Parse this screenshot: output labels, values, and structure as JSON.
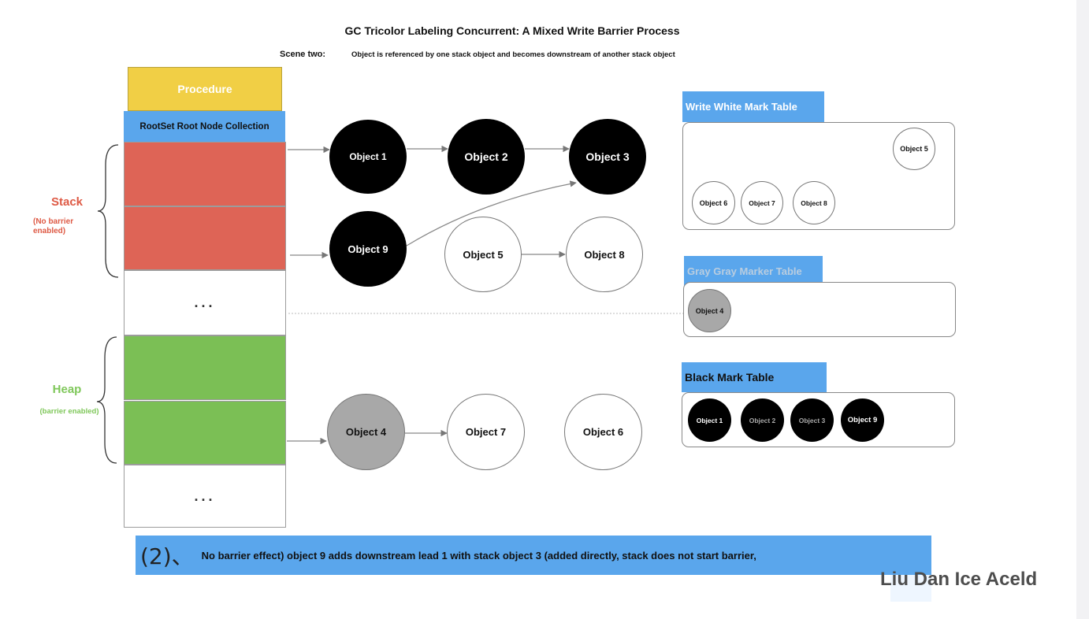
{
  "title": "GC Tricolor Labeling Concurrent: A Mixed Write Barrier Process",
  "scene": {
    "label": "Scene two:",
    "text": "Object is referenced by one stack object and becomes downstream of another stack object"
  },
  "procedure_label": "Procedure",
  "rootset_label": "RootSet Root Node Collection",
  "ellipsis": "...",
  "stack": {
    "label": "Stack",
    "sublabel": "(No barrier enabled)"
  },
  "heap": {
    "label": "Heap",
    "sublabel": "(barrier enabled)"
  },
  "nodes": {
    "obj1": "Object 1",
    "obj2": "Object 2",
    "obj3": "Object 3",
    "obj9": "Object 9",
    "obj5": "Object 5",
    "obj8": "Object 8",
    "obj4": "Object 4",
    "obj7": "Object 7",
    "obj6": "Object 6"
  },
  "colors": {
    "black": "#000000",
    "white": "#ffffff",
    "gray": "#a8a8a8",
    "stack_red": "#de6456",
    "heap_green": "#7bbf55",
    "procedure_yellow": "#f1cf45",
    "header_blue": "#5aa6ec"
  },
  "tables": {
    "white": {
      "header": "Write White Mark Table",
      "items": [
        "Object 5",
        "Object 6",
        "Object 7",
        "Object 8"
      ]
    },
    "gray": {
      "header": "Gray Gray Marker Table",
      "items": [
        "Object 4"
      ]
    },
    "black": {
      "header": "Black Mark Table",
      "items": [
        "Object 1",
        "Object 2",
        "Object 3",
        "Object 9"
      ]
    }
  },
  "caption": {
    "number": "(2)、",
    "text": "No barrier effect) object 9 adds downstream lead 1 with stack object 3 (added directly, stack does not start barrier,"
  },
  "author": "Liu Dan Ice Aceld"
}
